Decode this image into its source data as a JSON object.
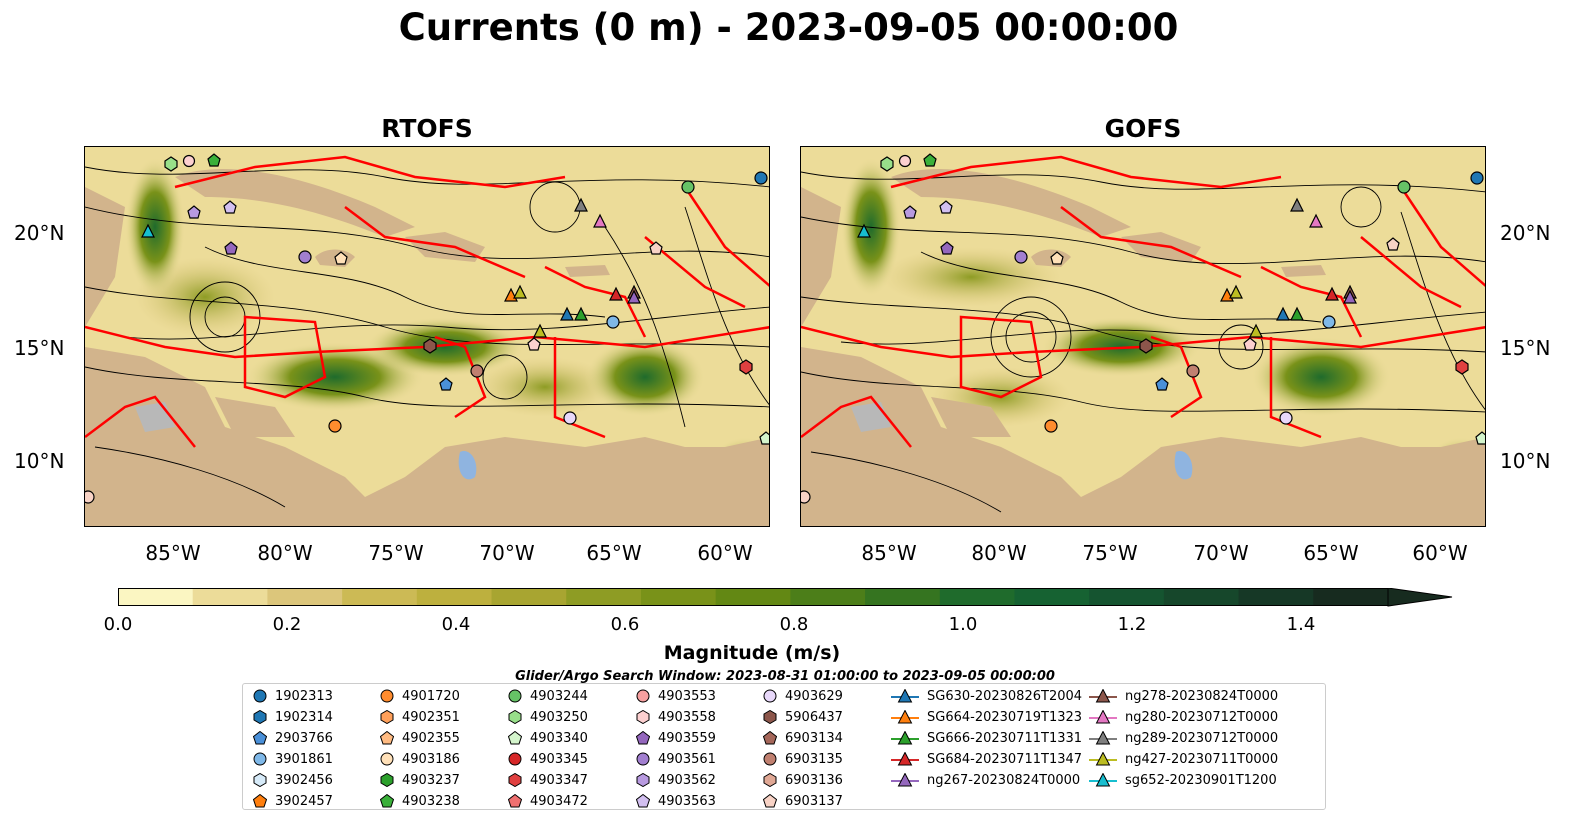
{
  "title": "Currents (0 m) - 2023-09-05 00:00:00",
  "panels": [
    {
      "title": "RTOFS"
    },
    {
      "title": "GOFS"
    }
  ],
  "lat_labels": [
    "20°N",
    "15°N",
    "10°N"
  ],
  "lon_labels": [
    "85°W",
    "80°W",
    "75°W",
    "70°W",
    "65°W",
    "60°W"
  ],
  "colorbar": {
    "label": "Magnitude (m/s)",
    "ticks": [
      "0.0",
      "0.2",
      "0.4",
      "0.6",
      "0.8",
      "1.0",
      "1.2",
      "1.4"
    ],
    "colors": [
      "#fbf6c2",
      "#ecdc99",
      "#dcc67b",
      "#ccba55",
      "#bdb03e",
      "#a8a531",
      "#8e9c24",
      "#799219",
      "#638814",
      "#4c7e19",
      "#357420",
      "#1f6b2c",
      "#166232",
      "#155430",
      "#16472b",
      "#163826",
      "#172b1f"
    ],
    "extend": "max"
  },
  "legend_title": "Glider/Argo Search Window: 2023-08-31 01:00:00 to 2023-09-05 00:00:00",
  "legend": [
    {
      "label": "1902313",
      "marker": "circle",
      "color": "#1f77b4"
    },
    {
      "label": "1902314",
      "marker": "hexagon",
      "color": "#1f77b4"
    },
    {
      "label": "2903766",
      "marker": "pentagon",
      "color": "#4a90d9"
    },
    {
      "label": "3901861",
      "marker": "circle",
      "color": "#7fb8e8"
    },
    {
      "label": "3902456",
      "marker": "hexagon",
      "color": "#d6eaf8"
    },
    {
      "label": "3902457",
      "marker": "pentagon",
      "color": "#ff7f0e"
    },
    {
      "label": "4901720",
      "marker": "circle",
      "color": "#ff8c2e"
    },
    {
      "label": "4902351",
      "marker": "hexagon",
      "color": "#ffa05a"
    },
    {
      "label": "4902355",
      "marker": "pentagon",
      "color": "#ffbb82"
    },
    {
      "label": "4903186",
      "marker": "circle",
      "color": "#ffe0b8"
    },
    {
      "label": "4903237",
      "marker": "hexagon",
      "color": "#2ca02c"
    },
    {
      "label": "4903238",
      "marker": "pentagon",
      "color": "#3ab03a"
    },
    {
      "label": "4903244",
      "marker": "circle",
      "color": "#66c266"
    },
    {
      "label": "4903250",
      "marker": "hexagon",
      "color": "#98df8a"
    },
    {
      "label": "4903340",
      "marker": "pentagon",
      "color": "#d4f5cc"
    },
    {
      "label": "4903345",
      "marker": "circle",
      "color": "#d62728"
    },
    {
      "label": "4903347",
      "marker": "hexagon",
      "color": "#e04040"
    },
    {
      "label": "4903472",
      "marker": "pentagon",
      "color": "#f07070"
    },
    {
      "label": "4903553",
      "marker": "circle",
      "color": "#f7a0a0"
    },
    {
      "label": "4903558",
      "marker": "hexagon",
      "color": "#fcd0d0"
    },
    {
      "label": "4903559",
      "marker": "pentagon",
      "color": "#9467bd"
    },
    {
      "label": "4903561",
      "marker": "circle",
      "color": "#a27fd0"
    },
    {
      "label": "4903562",
      "marker": "hexagon",
      "color": "#b89ae0"
    },
    {
      "label": "4903563",
      "marker": "pentagon",
      "color": "#d2bff0"
    },
    {
      "label": "4903629",
      "marker": "circle",
      "color": "#e8d8fa"
    },
    {
      "label": "5906437",
      "marker": "hexagon",
      "color": "#8c564b"
    },
    {
      "label": "6903134",
      "marker": "pentagon",
      "color": "#a5675a"
    },
    {
      "label": "6903135",
      "marker": "circle",
      "color": "#c08070"
    },
    {
      "label": "6903136",
      "marker": "hexagon",
      "color": "#e0a895"
    },
    {
      "label": "6903137",
      "marker": "pentagon",
      "color": "#f8d3c6"
    },
    {
      "label": "SG630-20230826T2004",
      "marker": "triangle",
      "color": "#1f77b4"
    },
    {
      "label": "SG664-20230719T1323",
      "marker": "triangle",
      "color": "#ff7f0e"
    },
    {
      "label": "SG666-20230711T1331",
      "marker": "triangle",
      "color": "#2ca02c"
    },
    {
      "label": "SG684-20230711T1347",
      "marker": "triangle",
      "color": "#d62728"
    },
    {
      "label": "ng267-20230824T0000",
      "marker": "triangle",
      "color": "#9467bd"
    },
    {
      "label": "ng278-20230824T0000",
      "marker": "triangle",
      "color": "#8c564b"
    },
    {
      "label": "ng280-20230712T0000",
      "marker": "triangle",
      "color": "#e377c2"
    },
    {
      "label": "ng289-20230712T0000",
      "marker": "triangle",
      "color": "#7f7f7f"
    },
    {
      "label": "ng427-20230711T0000",
      "marker": "triangle",
      "color": "#bcbd22"
    },
    {
      "label": "sg652-20230901T1200",
      "marker": "triangle",
      "color": "#17becf"
    }
  ],
  "colors": {
    "land": "#d2b48c",
    "lake": "#8fb4e0",
    "boundary": "#ff0000"
  }
}
